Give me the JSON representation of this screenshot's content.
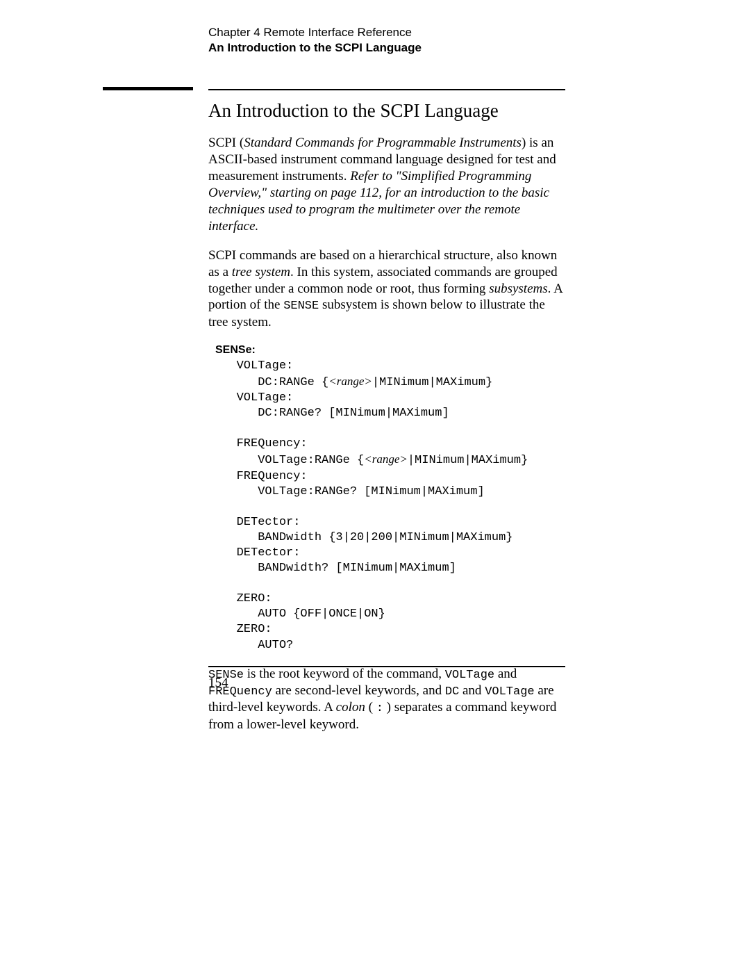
{
  "header": {
    "chapter": "Chapter 4  Remote Interface Reference",
    "section": "An Introduction to the SCPI Language"
  },
  "title": "An Introduction to the SCPI Language",
  "p1": {
    "t1": "SCPI (",
    "scpi_full": "Standard Commands for Programmable Instruments",
    "t2": ") is an ASCII-based instrument command language designed for test and measurement instruments. ",
    "ref": "Refer to \"Simplified Programming Overview,\" starting on page 112, for an introduction to the basic techniques used to program the multimeter over the remote interface."
  },
  "p2": {
    "t1": "SCPI commands are based on a hierarchical structure, also known as a ",
    "tree": "tree system",
    "t2": ". In this system, associated commands are grouped together under a common node or root, thus forming ",
    "subsys": "subsystems",
    "t3": ". A portion of the ",
    "sense": "SENSE",
    "t4": " subsystem is shown below to illustrate the tree system."
  },
  "code": {
    "root": "SENSe:",
    "l1": "   VOLTage:",
    "l2a": "      DC:RANGe {",
    "l2b": "<range>",
    "l2c": "|MINimum|MAXimum}",
    "l3": "   VOLTage:",
    "l4": "      DC:RANGe? [MINimum|MAXimum]",
    "l5": "   FREQuency:",
    "l6a": "      VOLTage:RANGe {",
    "l6b": "<range>",
    "l6c": "|MINimum|MAXimum}",
    "l7": "   FREQuency:",
    "l8": "      VOLTage:RANGe? [MINimum|MAXimum]",
    "l9": "   DETector:",
    "l10": "      BANDwidth {3|20|200|MINimum|MAXimum}",
    "l11": "   DETector:",
    "l12": "      BANDwidth? [MINimum|MAXimum]",
    "l13": "   ZERO:",
    "l14": "      AUTO {OFF|ONCE|ON}",
    "l15": "   ZERO:",
    "l16": "      AUTO?"
  },
  "p3": {
    "sense": "SENSe",
    "t1": " is the root keyword of the command, ",
    "volt": "VOLTage",
    "t2": " and ",
    "freq": "FREQuency",
    "t3": " are second-level keywords, and ",
    "dc": "DC",
    "t4": " and ",
    "volt2": "VOLTage",
    "t5": " are third-level keywords. A ",
    "colon_word": "colon",
    "t6": " ( ",
    "colon": ":",
    "t7": " ) separates a command keyword from a lower-level keyword."
  },
  "page_number": "154"
}
